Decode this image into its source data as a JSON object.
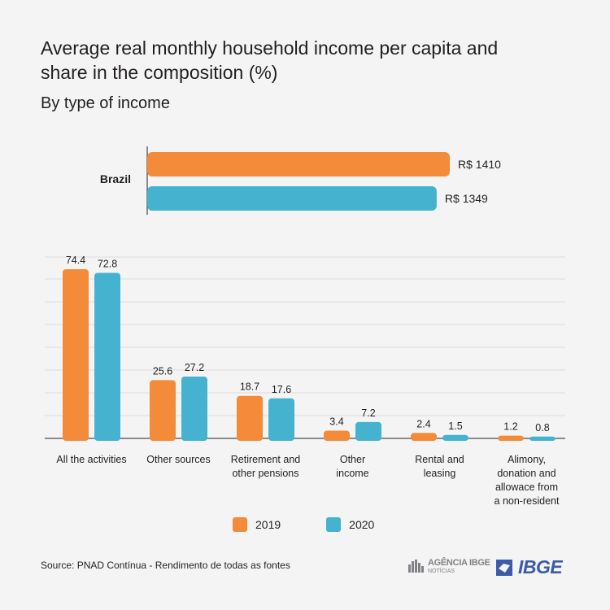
{
  "title": "Average real monthly household income per capita and share in the composition (%)",
  "subtitle": "By type of income",
  "source": "Source: PNAD Contínua - Rendimento de todas as fontes",
  "logos": {
    "agencia_main": "AGÊNCIA IBGE",
    "agencia_sub": "NOTÍCIAS",
    "ibge": "IBGE"
  },
  "colors": {
    "s2019": "#f38b3a",
    "s2020": "#45b2cf",
    "grid": "#dcdcdc",
    "axis": "#231f20"
  },
  "chart_data": [
    {
      "type": "bar",
      "orientation": "horizontal",
      "categories": [
        "Brazil"
      ],
      "series": [
        {
          "name": "2019",
          "values": [
            1410
          ],
          "labels": [
            "R$ 1410"
          ]
        },
        {
          "name": "2020",
          "values": [
            1349
          ],
          "labels": [
            "R$ 1349"
          ]
        }
      ]
    },
    {
      "type": "bar",
      "categories": [
        [
          "All the activities"
        ],
        [
          "Other sources"
        ],
        [
          "Retirement and",
          "other pensions"
        ],
        [
          "Other",
          "income"
        ],
        [
          "Rental and",
          "leasing"
        ],
        [
          "Alimony,",
          "donation and",
          "allowace from",
          "a non-resident"
        ]
      ],
      "series": [
        {
          "name": "2019",
          "values": [
            74.4,
            25.6,
            18.7,
            3.4,
            2.4,
            1.2
          ]
        },
        {
          "name": "2020",
          "values": [
            72.8,
            27.2,
            17.6,
            7.2,
            1.5,
            0.8
          ]
        }
      ],
      "grid": true,
      "legend": "bottom"
    }
  ]
}
